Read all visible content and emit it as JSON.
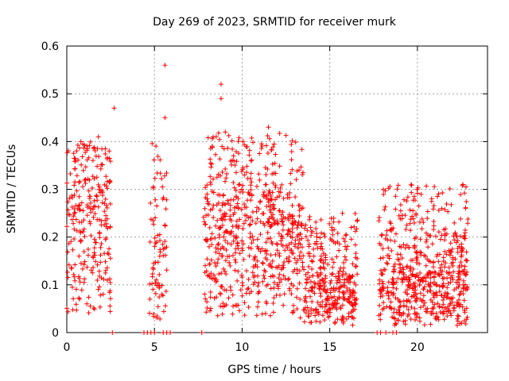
{
  "chart_data": {
    "type": "scatter",
    "title": "Day 269 of 2023, SRMTID for receiver murk",
    "xlabel": "GPS time / hours",
    "ylabel": "SRMTID / TECUs",
    "xlim": [
      0,
      24
    ],
    "ylim": [
      0,
      0.6
    ],
    "grid": true,
    "marker": "+",
    "color": "#ff0000",
    "xticks": [
      0,
      5,
      10,
      15,
      20
    ],
    "xtick_labels": [
      "0",
      "5",
      "10",
      "15",
      "20"
    ],
    "yticks": [
      0,
      0.1,
      0.2,
      0.3,
      0.4,
      0.5,
      0.6
    ],
    "ytick_labels": [
      "0",
      "0.1",
      "0.2",
      "0.3",
      "0.4",
      "0.5",
      "0.6"
    ],
    "clusters": [
      {
        "x_range": [
          0.0,
          2.5
        ],
        "y_range": [
          0.03,
          0.4
        ],
        "y_center": 0.18,
        "count": 260
      },
      {
        "x_range": [
          4.7,
          5.7
        ],
        "y_range": [
          0.0,
          0.45
        ],
        "y_center": 0.12,
        "count": 80
      },
      {
        "x_range": [
          7.8,
          13.5
        ],
        "y_range": [
          0.0,
          0.42
        ],
        "y_center": 0.15,
        "count": 650
      },
      {
        "x_range": [
          13.5,
          16.6
        ],
        "y_range": [
          0.0,
          0.25
        ],
        "y_center": 0.07,
        "count": 330
      },
      {
        "x_range": [
          17.8,
          22.9
        ],
        "y_range": [
          0.0,
          0.31
        ],
        "y_center": 0.07,
        "count": 600
      }
    ],
    "notable_points": [
      {
        "x": 2.7,
        "y": 0.47
      },
      {
        "x": 5.6,
        "y": 0.56
      },
      {
        "x": 5.6,
        "y": 0.45
      },
      {
        "x": 8.8,
        "y": 0.52
      },
      {
        "x": 8.8,
        "y": 0.49
      },
      {
        "x": 11.5,
        "y": 0.43
      },
      {
        "x": 1.8,
        "y": 0.41
      },
      {
        "x": 0.8,
        "y": 0.4
      },
      {
        "x": 22.6,
        "y": 0.31
      }
    ],
    "zero_points_x": [
      2.6,
      4.4,
      4.6,
      4.8,
      5.0,
      5.5,
      5.7,
      5.9,
      7.7,
      17.7,
      17.9,
      18.2,
      18.6,
      18.8
    ]
  }
}
